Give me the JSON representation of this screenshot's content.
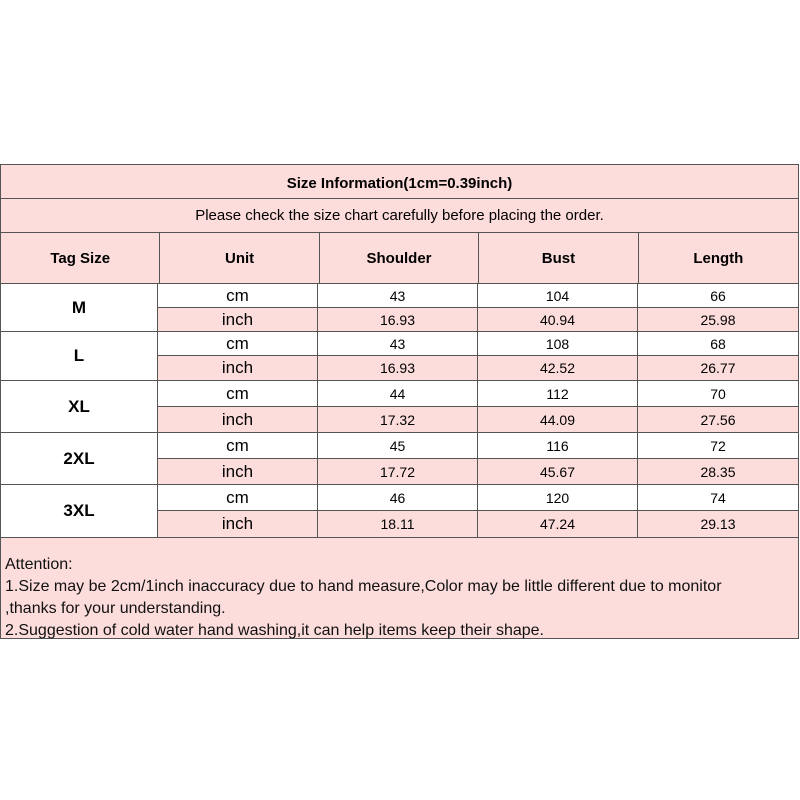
{
  "title": "Size Information(1cm=0.39inch)",
  "subtitle": "Please check the size chart carefully before placing the order.",
  "headers": [
    "Tag Size",
    "Unit",
    "Shoulder",
    "Bust",
    "Length"
  ],
  "sizes": [
    {
      "tag": "M",
      "cm": {
        "unit": "cm",
        "values": [
          "43",
          "104",
          "66"
        ]
      },
      "inch": {
        "unit": "inch",
        "values": [
          "16.93",
          "40.94",
          "25.98"
        ]
      }
    },
    {
      "tag": "L",
      "cm": {
        "unit": "cm",
        "values": [
          "43",
          "108",
          "68"
        ]
      },
      "inch": {
        "unit": "inch",
        "values": [
          "16.93",
          "42.52",
          "26.77"
        ]
      }
    },
    {
      "tag": "XL",
      "cm": {
        "unit": "cm",
        "values": [
          "44",
          "112",
          "70"
        ]
      },
      "inch": {
        "unit": "inch",
        "values": [
          "17.32",
          "44.09",
          "27.56"
        ]
      }
    },
    {
      "tag": "2XL",
      "cm": {
        "unit": "cm",
        "values": [
          "45",
          "116",
          "72"
        ]
      },
      "inch": {
        "unit": "inch",
        "values": [
          "17.72",
          "45.67",
          "28.35"
        ]
      }
    },
    {
      "tag": "3XL",
      "cm": {
        "unit": "cm",
        "values": [
          "46",
          "120",
          "74"
        ]
      },
      "inch": {
        "unit": "inch",
        "values": [
          "18.11",
          "47.24",
          "29.13"
        ]
      }
    }
  ],
  "notes": [
    "Attention:",
    "1.Size may be 2cm/1inch inaccuracy due to hand measure,Color may be little different due to monitor",
    ",thanks for your understanding.",
    "2.Suggestion of cold water hand washing,it can help items keep their shape."
  ],
  "colors": {
    "pink": "#fddcdc",
    "border": "#555555"
  }
}
